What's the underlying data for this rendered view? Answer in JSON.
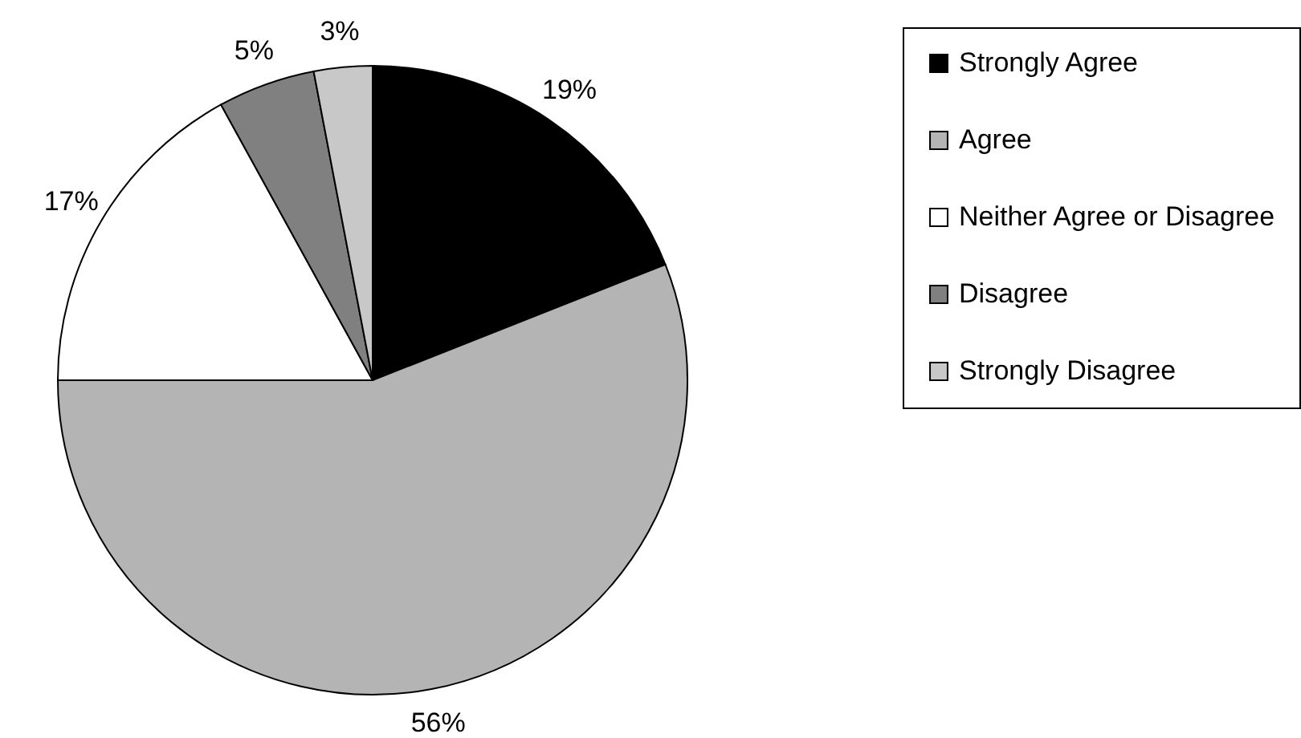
{
  "chart_data": {
    "type": "pie",
    "categories": [
      "Strongly Agree",
      "Agree",
      "Neither Agree or Disagree",
      "Disagree",
      "Strongly Disagree"
    ],
    "values": [
      19,
      56,
      17,
      5,
      3
    ],
    "colors": [
      "#000000",
      "#b4b4b4",
      "#ffffff",
      "#808080",
      "#c8c8c8"
    ],
    "value_labels": [
      "19%",
      "56%",
      "17%",
      "5%",
      "3%"
    ],
    "legend": "right"
  }
}
